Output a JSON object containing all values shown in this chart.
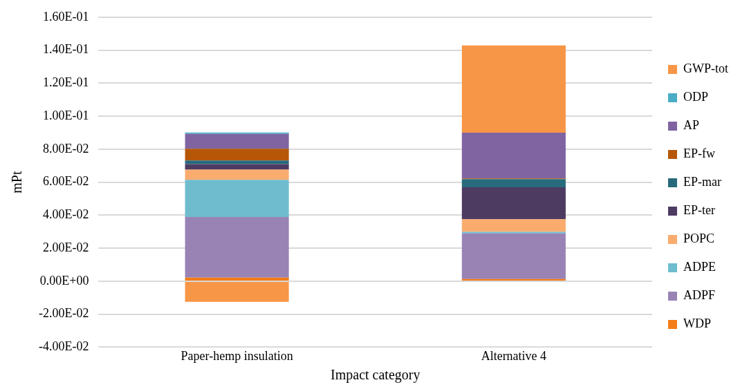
{
  "chart_data": {
    "type": "bar",
    "stacked": true,
    "xlabel": "Impact category",
    "ylabel": "mPt",
    "categories": [
      "Paper-hemp insulation",
      "Alternative 4"
    ],
    "series": [
      {
        "name": "WDP",
        "color": "#f37c17",
        "values": [
          0.0022,
          0.0013
        ]
      },
      {
        "name": "ADPF",
        "color": "#9983b5",
        "values": [
          0.0367,
          0.0276
        ]
      },
      {
        "name": "ADPE",
        "color": "#6fbccf",
        "values": [
          0.0225,
          0.001
        ]
      },
      {
        "name": "POPC",
        "color": "#f9ac6d",
        "values": [
          0.0062,
          0.0076
        ]
      },
      {
        "name": "EP-ter",
        "color": "#4d3b62",
        "values": [
          0.0033,
          0.0194
        ]
      },
      {
        "name": "EP-mar",
        "color": "#276a7c",
        "values": [
          0.0022,
          0.0049
        ]
      },
      {
        "name": "EP-fw",
        "color": "#b65708",
        "values": [
          0.0071,
          0.0004
        ]
      },
      {
        "name": "AP",
        "color": "#8064a2",
        "values": [
          0.0091,
          0.0278
        ]
      },
      {
        "name": "ODP",
        "color": "#4bacc6",
        "values": [
          0.0008,
          0
        ]
      },
      {
        "name": "GWP-tot",
        "color": "#f79646",
        "values": [
          -0.0125,
          0.0528
        ]
      }
    ],
    "ylim": [
      -0.04,
      0.16
    ],
    "yticks": [
      {
        "value": -0.04,
        "label": "-4.00E-02"
      },
      {
        "value": -0.02,
        "label": "-2.00E-02"
      },
      {
        "value": 0,
        "label": "0.00E+00"
      },
      {
        "value": 0.02,
        "label": "2.00E-02"
      },
      {
        "value": 0.04,
        "label": "4.00E-02"
      },
      {
        "value": 0.06,
        "label": "6.00E-02"
      },
      {
        "value": 0.08,
        "label": "8.00E-02"
      },
      {
        "value": 0.1,
        "label": "1.00E-01"
      },
      {
        "value": 0.12,
        "label": "1.20E-01"
      },
      {
        "value": 0.14,
        "label": "1.40E-01"
      },
      {
        "value": 0.16,
        "label": "1.60E-01"
      }
    ],
    "grid": "y",
    "legend": "right"
  }
}
